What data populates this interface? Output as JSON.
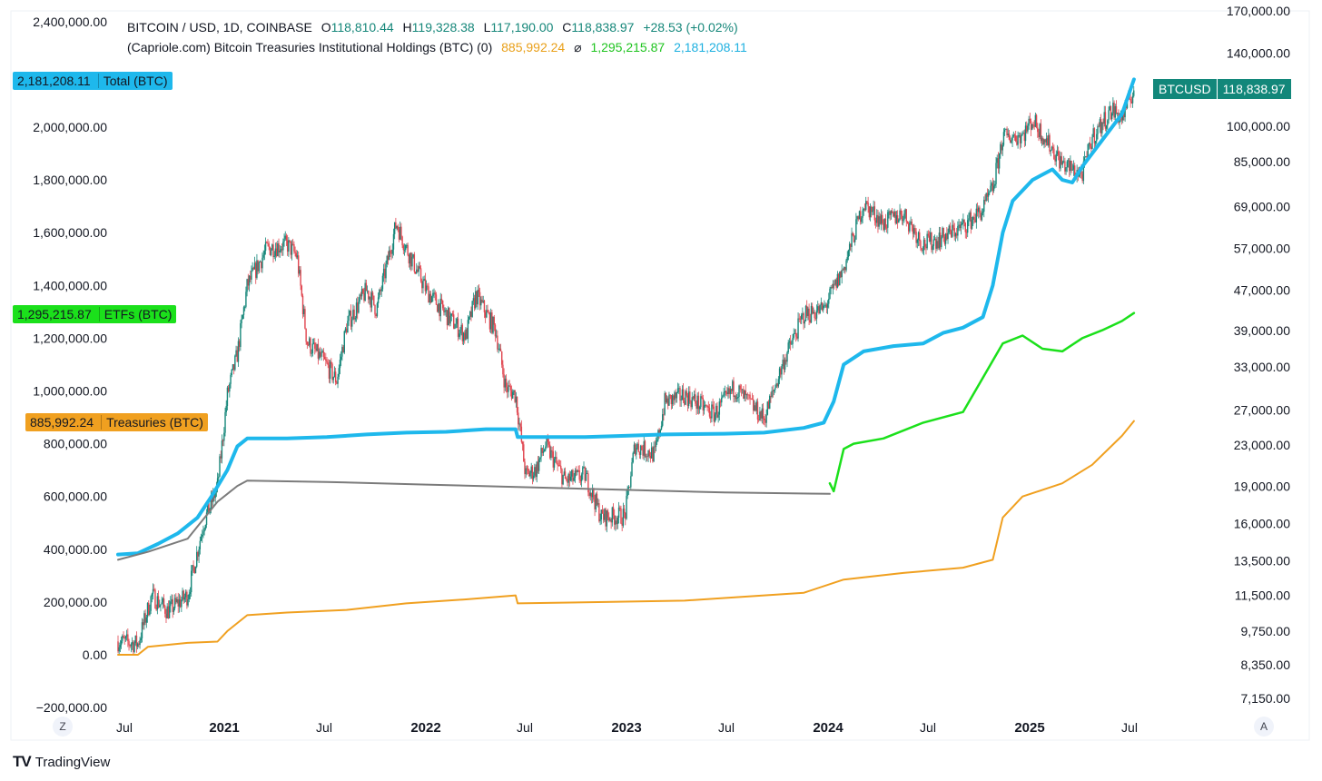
{
  "legend": {
    "symbol": "BITCOIN / USD, 1D, COINBASE",
    "open_label": "O",
    "open": "118,810.44",
    "high_label": "H",
    "high": "119,328.38",
    "low_label": "L",
    "low": "117,190.00",
    "close_label": "C",
    "close": "118,838.97",
    "change": "+28.53 (+0.02%)",
    "indicator": "(Capriole.com) Bitcoin Treasuries Institutional Holdings (BTC) (0)",
    "ind_val1": "885,992.24",
    "ind_sep": "⌀",
    "ind_val2": "1,295,215.87",
    "ind_val3": "2,181,208.11"
  },
  "tags": {
    "total": {
      "value": "2,181,208.11",
      "label": "Total (BTC)"
    },
    "etfs": {
      "value": "1,295,215.87",
      "label": "ETFs (BTC)"
    },
    "treasuries": {
      "value": "885,992.24",
      "label": "Treasuries (BTC)"
    }
  },
  "price_tag": {
    "symbol": "BTCUSD",
    "value": "118,838.97"
  },
  "corner_left": "Z",
  "corner_right": "A",
  "brand": {
    "mark": "TV",
    "name": "TradingView"
  },
  "colors": {
    "total": "#1eb8ec",
    "etfs": "#1be01b",
    "treasuries": "#f0a020",
    "legacy": "#7b7b7b",
    "up": "#16877a",
    "down": "#e0454f",
    "tag_price": "#12877a",
    "text_green": "#16877a"
  },
  "chart_data": {
    "type": "line",
    "x_range": [
      "2020-06",
      "2025-07"
    ],
    "x_ticks": [
      {
        "label": "Jul",
        "bold": false
      },
      {
        "label": "2021",
        "bold": true
      },
      {
        "label": "Jul",
        "bold": false
      },
      {
        "label": "2022",
        "bold": true
      },
      {
        "label": "Jul",
        "bold": false
      },
      {
        "label": "2023",
        "bold": true
      },
      {
        "label": "Jul",
        "bold": false
      },
      {
        "label": "2024",
        "bold": true
      },
      {
        "label": "Jul",
        "bold": false
      },
      {
        "label": "2025",
        "bold": true
      },
      {
        "label": "Jul",
        "bold": false
      }
    ],
    "left_axis": {
      "ylim": [
        -200000,
        2400000
      ],
      "ticks": [
        "2,400,000.00",
        "2,000,000.00",
        "1,800,000.00",
        "1,600,000.00",
        "1,400,000.00",
        "1,200,000.00",
        "1,000,000.00",
        "800,000.00",
        "600,000.00",
        "400,000.00",
        "200,000.00",
        "0.00",
        "−200,000.00"
      ],
      "tick_values": [
        2400000,
        2000000,
        1800000,
        1600000,
        1400000,
        1200000,
        1000000,
        800000,
        600000,
        400000,
        200000,
        0,
        -200000
      ]
    },
    "right_axis": {
      "scale": "log",
      "ticks": [
        "170,000.00",
        "140,000.00",
        "100,000.00",
        "85,000.00",
        "69,000.00",
        "57,000.00",
        "47,000.00",
        "39,000.00",
        "33,000.00",
        "27,000.00",
        "23,000.00",
        "19,000.00",
        "16,000.00",
        "13,500.00",
        "11,500.00",
        "9,750.00",
        "8,350.00",
        "7,150.00"
      ],
      "tick_values": [
        170000,
        140000,
        100000,
        85000,
        69000,
        57000,
        47000,
        39000,
        33000,
        27000,
        23000,
        19000,
        16000,
        13500,
        11500,
        9750,
        8350,
        7150
      ]
    },
    "series": [
      {
        "name": "Total (BTC)",
        "axis": "left",
        "points": [
          [
            2020.45,
            380000
          ],
          [
            2020.55,
            385000
          ],
          [
            2020.65,
            420000
          ],
          [
            2020.75,
            460000
          ],
          [
            2020.85,
            520000
          ],
          [
            2020.92,
            600000
          ],
          [
            2021.0,
            700000
          ],
          [
            2021.05,
            790000
          ],
          [
            2021.1,
            820000
          ],
          [
            2021.3,
            820000
          ],
          [
            2021.5,
            825000
          ],
          [
            2021.7,
            835000
          ],
          [
            2021.9,
            842000
          ],
          [
            2022.1,
            845000
          ],
          [
            2022.3,
            855000
          ],
          [
            2022.45,
            855000
          ],
          [
            2022.46,
            825000
          ],
          [
            2022.8,
            825000
          ],
          [
            2023.0,
            830000
          ],
          [
            2023.2,
            835000
          ],
          [
            2023.5,
            838000
          ],
          [
            2023.7,
            842000
          ],
          [
            2023.9,
            860000
          ],
          [
            2024.0,
            880000
          ],
          [
            2024.05,
            960000
          ],
          [
            2024.1,
            1100000
          ],
          [
            2024.2,
            1150000
          ],
          [
            2024.35,
            1170000
          ],
          [
            2024.5,
            1180000
          ],
          [
            2024.6,
            1220000
          ],
          [
            2024.7,
            1240000
          ],
          [
            2024.8,
            1280000
          ],
          [
            2024.85,
            1400000
          ],
          [
            2024.9,
            1600000
          ],
          [
            2024.95,
            1720000
          ],
          [
            2025.05,
            1800000
          ],
          [
            2025.15,
            1840000
          ],
          [
            2025.2,
            1800000
          ],
          [
            2025.25,
            1790000
          ],
          [
            2025.3,
            1850000
          ],
          [
            2025.4,
            1950000
          ],
          [
            2025.5,
            2050000
          ],
          [
            2025.56,
            2181208
          ]
        ]
      },
      {
        "name": "ETFs (BTC)",
        "axis": "left",
        "points": [
          [
            2024.03,
            650000
          ],
          [
            2024.05,
            620000
          ],
          [
            2024.1,
            780000
          ],
          [
            2024.15,
            800000
          ],
          [
            2024.3,
            820000
          ],
          [
            2024.5,
            880000
          ],
          [
            2024.6,
            900000
          ],
          [
            2024.7,
            920000
          ],
          [
            2024.8,
            1050000
          ],
          [
            2024.9,
            1180000
          ],
          [
            2025.0,
            1210000
          ],
          [
            2025.1,
            1160000
          ],
          [
            2025.2,
            1150000
          ],
          [
            2025.3,
            1200000
          ],
          [
            2025.4,
            1230000
          ],
          [
            2025.5,
            1265000
          ],
          [
            2025.56,
            1295215
          ]
        ]
      },
      {
        "name": "Treasuries (BTC)",
        "axis": "left",
        "points": [
          [
            2020.45,
            0
          ],
          [
            2020.55,
            0
          ],
          [
            2020.6,
            30000
          ],
          [
            2020.8,
            45000
          ],
          [
            2020.95,
            50000
          ],
          [
            2021.0,
            90000
          ],
          [
            2021.1,
            150000
          ],
          [
            2021.3,
            160000
          ],
          [
            2021.6,
            170000
          ],
          [
            2021.9,
            195000
          ],
          [
            2022.2,
            210000
          ],
          [
            2022.45,
            225000
          ],
          [
            2022.46,
            195000
          ],
          [
            2022.9,
            200000
          ],
          [
            2023.3,
            205000
          ],
          [
            2023.5,
            215000
          ],
          [
            2023.9,
            235000
          ],
          [
            2024.1,
            285000
          ],
          [
            2024.4,
            310000
          ],
          [
            2024.7,
            330000
          ],
          [
            2024.85,
            360000
          ],
          [
            2024.9,
            520000
          ],
          [
            2025.0,
            600000
          ],
          [
            2025.2,
            650000
          ],
          [
            2025.35,
            720000
          ],
          [
            2025.5,
            830000
          ],
          [
            2025.56,
            885992
          ]
        ]
      },
      {
        "name": "",
        "axis": "left",
        "points": [
          [
            2020.45,
            360000
          ],
          [
            2020.6,
            390000
          ],
          [
            2020.8,
            440000
          ],
          [
            2020.95,
            580000
          ],
          [
            2021.05,
            640000
          ],
          [
            2021.1,
            660000
          ],
          [
            2021.5,
            655000
          ],
          [
            2022.0,
            645000
          ],
          [
            2022.5,
            635000
          ],
          [
            2023.0,
            625000
          ],
          [
            2023.5,
            615000
          ],
          [
            2024.03,
            610000
          ]
        ]
      },
      {
        "name": "BTCUSD",
        "axis": "right",
        "type": "candlestick",
        "points": [
          [
            2020.45,
            9300
          ],
          [
            2020.55,
            9200
          ],
          [
            2020.62,
            11500
          ],
          [
            2020.7,
            10700
          ],
          [
            2020.8,
            11500
          ],
          [
            2020.88,
            16000
          ],
          [
            2020.95,
            19000
          ],
          [
            2021.0,
            29000
          ],
          [
            2021.05,
            35000
          ],
          [
            2021.1,
            48000
          ],
          [
            2021.2,
            57000
          ],
          [
            2021.3,
            58000
          ],
          [
            2021.35,
            55000
          ],
          [
            2021.4,
            37000
          ],
          [
            2021.48,
            34000
          ],
          [
            2021.55,
            31000
          ],
          [
            2021.6,
            40000
          ],
          [
            2021.7,
            47000
          ],
          [
            2021.75,
            43000
          ],
          [
            2021.85,
            64000
          ],
          [
            2021.9,
            57000
          ],
          [
            2022.0,
            47000
          ],
          [
            2022.1,
            42000
          ],
          [
            2022.2,
            38000
          ],
          [
            2022.25,
            46000
          ],
          [
            2022.35,
            39000
          ],
          [
            2022.4,
            30000
          ],
          [
            2022.45,
            29000
          ],
          [
            2022.5,
            20000
          ],
          [
            2022.55,
            20500
          ],
          [
            2022.6,
            23000
          ],
          [
            2022.7,
            19500
          ],
          [
            2022.8,
            20000
          ],
          [
            2022.88,
            16500
          ],
          [
            2023.0,
            16600
          ],
          [
            2023.05,
            23000
          ],
          [
            2023.15,
            22000
          ],
          [
            2023.2,
            28000
          ],
          [
            2023.3,
            29000
          ],
          [
            2023.45,
            26500
          ],
          [
            2023.55,
            30000
          ],
          [
            2023.7,
            26000
          ],
          [
            2023.8,
            34000
          ],
          [
            2023.9,
            42000
          ],
          [
            2024.0,
            43000
          ],
          [
            2024.1,
            52000
          ],
          [
            2024.2,
            70000
          ],
          [
            2024.3,
            64000
          ],
          [
            2024.4,
            67000
          ],
          [
            2024.5,
            58000
          ],
          [
            2024.6,
            60000
          ],
          [
            2024.7,
            63000
          ],
          [
            2024.8,
            68000
          ],
          [
            2024.85,
            75000
          ],
          [
            2024.9,
            95000
          ],
          [
            2025.0,
            96000
          ],
          [
            2025.05,
            103000
          ],
          [
            2025.15,
            90000
          ],
          [
            2025.2,
            84000
          ],
          [
            2025.3,
            80000
          ],
          [
            2025.35,
            95000
          ],
          [
            2025.45,
            108000
          ],
          [
            2025.5,
            104000
          ],
          [
            2025.56,
            118839
          ]
        ]
      }
    ]
  }
}
